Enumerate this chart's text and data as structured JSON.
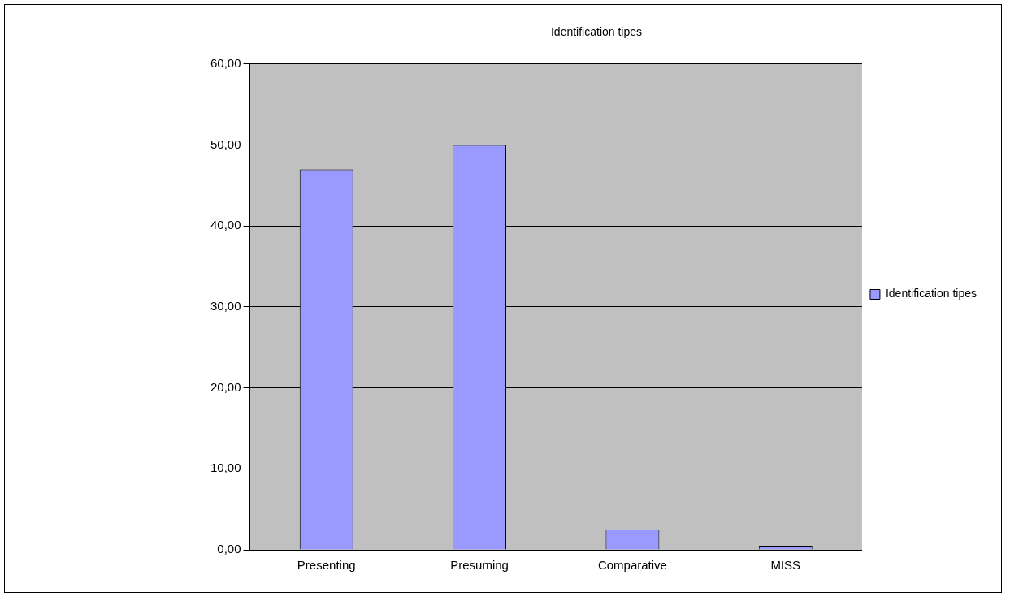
{
  "chart_data": {
    "type": "bar",
    "title": "Identification tipes",
    "categories": [
      "Presenting",
      "Presuming",
      "Comparative",
      "MISS"
    ],
    "series": [
      {
        "name": "Identification tipes",
        "color": "#9999ff",
        "values": [
          47,
          50,
          2.5,
          0.5
        ]
      }
    ],
    "ylim": [
      0,
      60
    ],
    "yticks": [
      {
        "value": 0,
        "label": "0,00"
      },
      {
        "value": 10,
        "label": "10,00"
      },
      {
        "value": 20,
        "label": "20,00"
      },
      {
        "value": 30,
        "label": "30,00"
      },
      {
        "value": 40,
        "label": "40,00"
      },
      {
        "value": 50,
        "label": "50,00"
      },
      {
        "value": 60,
        "label": "60,00"
      }
    ],
    "grid": "y",
    "legend": "right"
  }
}
